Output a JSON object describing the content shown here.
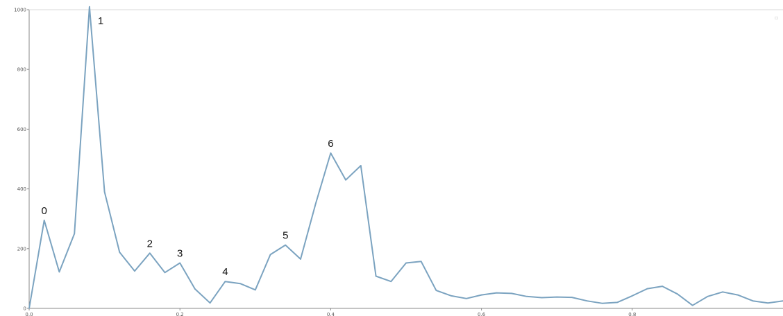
{
  "chart_data": {
    "type": "line",
    "title": "",
    "xlabel": "",
    "ylabel": "",
    "xlim": [
      0,
      1.0
    ],
    "ylim": [
      0,
      1000
    ],
    "grid": false,
    "legend": "none",
    "yticks": [
      "0",
      "200",
      "400",
      "600",
      "800",
      "1000"
    ],
    "ytick_values": [
      0,
      200,
      400,
      600,
      800,
      1000
    ],
    "xticks": [
      "0.0",
      "0.2",
      "0.4",
      "0.6",
      "0.8"
    ],
    "xtick_values": [
      0.0,
      0.2,
      0.4,
      0.6,
      0.8
    ],
    "series": [
      {
        "color": "#7ba3c0",
        "x": [
          0.0,
          0.02,
          0.04,
          0.06,
          0.08,
          0.1,
          0.12,
          0.14,
          0.16,
          0.18,
          0.2,
          0.22,
          0.24,
          0.26,
          0.28,
          0.3,
          0.32,
          0.34,
          0.36,
          0.38,
          0.4,
          0.42,
          0.44,
          0.46,
          0.48,
          0.5,
          0.52,
          0.54,
          0.56,
          0.58,
          0.6,
          0.62,
          0.64,
          0.66,
          0.68,
          0.7,
          0.72,
          0.74,
          0.76,
          0.78,
          0.8,
          0.82,
          0.84,
          0.86,
          0.88,
          0.9,
          0.92,
          0.94,
          0.96,
          0.98,
          1.0
        ],
        "y": [
          0,
          295,
          122,
          250,
          1010,
          390,
          188,
          125,
          185,
          120,
          152,
          65,
          18,
          90,
          83,
          62,
          180,
          212,
          165,
          350,
          520,
          430,
          478,
          108,
          90,
          152,
          157,
          60,
          42,
          33,
          45,
          52,
          50,
          40,
          36,
          38,
          37,
          25,
          17,
          20,
          42,
          66,
          74,
          48,
          10,
          40,
          55,
          45,
          25,
          18,
          25
        ]
      }
    ],
    "annotations": [
      {
        "text": "0",
        "x": 0.02,
        "y": 295
      },
      {
        "text": "1",
        "x": 0.08,
        "y": 1010
      },
      {
        "text": "2",
        "x": 0.16,
        "y": 185
      },
      {
        "text": "3",
        "x": 0.2,
        "y": 152
      },
      {
        "text": "4",
        "x": 0.26,
        "y": 90
      },
      {
        "text": "5",
        "x": 0.34,
        "y": 212
      },
      {
        "text": "6",
        "x": 0.4,
        "y": 520
      }
    ]
  }
}
